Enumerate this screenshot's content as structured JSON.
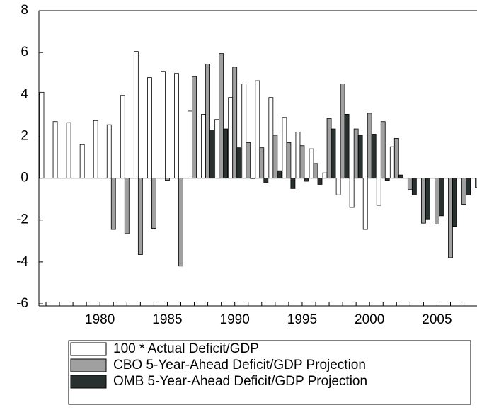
{
  "chart_data": {
    "type": "bar",
    "categories": [
      null,
      null,
      null,
      null,
      "1980",
      null,
      null,
      null,
      null,
      "1985",
      null,
      null,
      null,
      null,
      "1990",
      null,
      null,
      null,
      null,
      "1995",
      null,
      null,
      null,
      null,
      "2000",
      null,
      null,
      null,
      null,
      "2005",
      null,
      null,
      null
    ],
    "series": [
      {
        "name": "100 * Actual Deficit/GDP",
        "color": "#ffffff",
        "values": [
          4.1,
          2.7,
          2.65,
          1.6,
          2.75,
          2.55,
          3.95,
          6.05,
          4.8,
          5.1,
          5.0,
          3.2,
          3.05,
          2.8,
          3.85,
          4.5,
          4.65,
          3.85,
          2.9,
          2.2,
          1.4,
          0.25,
          -0.8,
          -1.4,
          -2.45,
          -1.3,
          1.5,
          null,
          null,
          null,
          null,
          null,
          null
        ]
      },
      {
        "name": "CBO 5-Year-Ahead Deficit/GDP Projection",
        "color": "#a0a0a0",
        "values": [
          null,
          null,
          null,
          null,
          null,
          -2.45,
          -2.65,
          -3.65,
          -2.4,
          -0.1,
          -4.2,
          4.85,
          5.45,
          5.95,
          5.3,
          1.7,
          1.45,
          2.05,
          1.7,
          1.55,
          0.7,
          2.85,
          4.5,
          2.35,
          3.1,
          2.7,
          1.9,
          -0.55,
          -2.15,
          -2.2,
          -3.8,
          -1.25,
          -0.45
        ]
      },
      {
        "name": "OMB 5-Year-Ahead Deficit/GDP Projection",
        "color": "#283030",
        "values": [
          null,
          null,
          null,
          null,
          null,
          null,
          null,
          null,
          null,
          null,
          null,
          null,
          2.3,
          2.35,
          1.45,
          -0.02,
          -0.2,
          0.35,
          -0.5,
          -0.15,
          -0.3,
          2.35,
          3.05,
          2.05,
          2.1,
          -0.1,
          0.15,
          -0.8,
          -1.95,
          -1.8,
          -2.3,
          -0.8,
          null
        ]
      }
    ],
    "ylim": [
      -6,
      8
    ],
    "yticks": [
      -6,
      -4,
      -2,
      0,
      2,
      4,
      6,
      8
    ],
    "legend": "bottom"
  }
}
